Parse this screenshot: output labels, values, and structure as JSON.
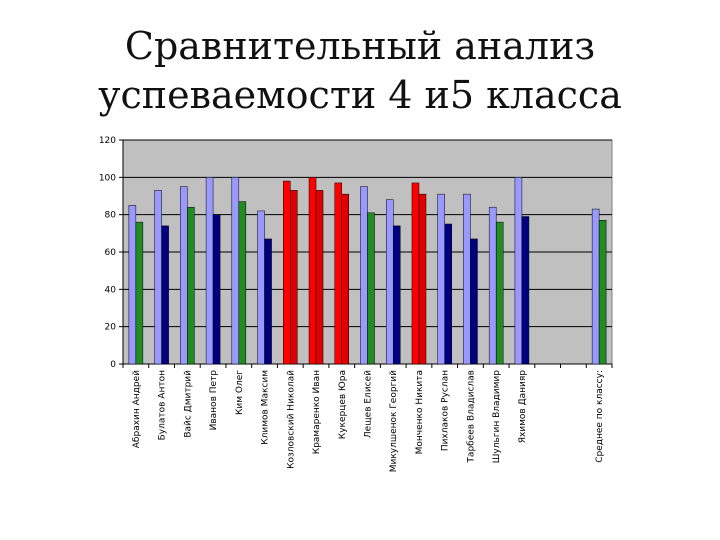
{
  "slide": {
    "title_line1": "Сравнительный анализ",
    "title_line2": "успеваемости 4 и5 класса"
  },
  "chart_data": {
    "type": "bar",
    "title": "",
    "xlabel": "",
    "ylabel": "",
    "ylim": [
      0,
      120
    ],
    "yticks": [
      0,
      20,
      40,
      60,
      80,
      100,
      120
    ],
    "grid": true,
    "legend": "none",
    "colors": {
      "plot_bg": "#c0c0c0",
      "bar_light": "#9999ff",
      "bar_green": "#228b22",
      "bar_navy": "#000080",
      "bar_red": "#ff0000",
      "bar_red_dark": "#e00000",
      "bar_stroke": "#000000",
      "gridline": "#000000"
    },
    "categories": [
      {
        "label": "Абрахин Андрей",
        "a": 85,
        "b": 76,
        "ca": "bar_light",
        "cb": "bar_green"
      },
      {
        "label": "Булатов Антон",
        "a": 93,
        "b": 74,
        "ca": "bar_light",
        "cb": "bar_navy"
      },
      {
        "label": "Вайс Дмитрий",
        "a": 95,
        "b": 84,
        "ca": "bar_light",
        "cb": "bar_green"
      },
      {
        "label": "Иванов Петр",
        "a": 100,
        "b": 80,
        "ca": "bar_light",
        "cb": "bar_navy"
      },
      {
        "label": "Ким Олег",
        "a": 100,
        "b": 87,
        "ca": "bar_light",
        "cb": "bar_green"
      },
      {
        "label": "Климов Максим",
        "a": 82,
        "b": 67,
        "ca": "bar_light",
        "cb": "bar_navy"
      },
      {
        "label": "Козловский Николай",
        "a": 98,
        "b": 93,
        "ca": "bar_red",
        "cb": "bar_red_dark"
      },
      {
        "label": "Крамаренко Иван",
        "a": 100,
        "b": 93,
        "ca": "bar_red",
        "cb": "bar_red_dark"
      },
      {
        "label": "Кукерцев Юра",
        "a": 97,
        "b": 91,
        "ca": "bar_red",
        "cb": "bar_red_dark"
      },
      {
        "label": "Лещев Елисей",
        "a": 95,
        "b": 81,
        "ca": "bar_light",
        "cb": "bar_green"
      },
      {
        "label": "Микулшенок Георгий",
        "a": 88,
        "b": 74,
        "ca": "bar_light",
        "cb": "bar_navy"
      },
      {
        "label": "Монченко Никита",
        "a": 97,
        "b": 91,
        "ca": "bar_red",
        "cb": "bar_red_dark"
      },
      {
        "label": "Пихлаков Руслан",
        "a": 91,
        "b": 75,
        "ca": "bar_light",
        "cb": "bar_navy"
      },
      {
        "label": "Тарбеев Владислав",
        "a": 91,
        "b": 67,
        "ca": "bar_light",
        "cb": "bar_navy"
      },
      {
        "label": "Шульгин Владимир",
        "a": 84,
        "b": 76,
        "ca": "bar_light",
        "cb": "bar_green"
      },
      {
        "label": "Яхимов Данияр",
        "a": 100,
        "b": 79,
        "ca": "bar_light",
        "cb": "bar_navy"
      },
      {
        "label": "",
        "a": null,
        "b": null,
        "ca": "bar_light",
        "cb": "bar_navy"
      },
      {
        "label": "",
        "a": null,
        "b": null,
        "ca": "bar_light",
        "cb": "bar_navy"
      },
      {
        "label": "Среднее по классу:",
        "a": 83,
        "b": 77,
        "ca": "bar_light",
        "cb": "bar_green"
      }
    ]
  }
}
